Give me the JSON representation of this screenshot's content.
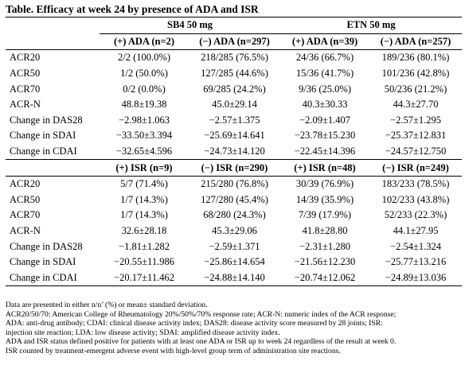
{
  "title": "Table. Efficacy at week 24 by presence of ADA and ISR",
  "groups": [
    "SB4 50 mg",
    "ETN 50 mg"
  ],
  "ada_headers": [
    "(+) ADA (n=2)",
    "(−) ADA (n=297)",
    "(+) ADA (n=39)",
    "(−) ADA (n=257)"
  ],
  "ada_rows": [
    {
      "label": "ACR20",
      "values": [
        "2/2 (100.0%)",
        "218/285 (76.5%)",
        "24/36 (66.7%)",
        "189/236 (80.1%)"
      ]
    },
    {
      "label": "ACR50",
      "values": [
        "1/2 (50.0%)",
        "127/285 (44.6%)",
        "15/36 (41.7%)",
        "101/236 (42.8%)"
      ]
    },
    {
      "label": "ACR70",
      "values": [
        "0/2 (0.0%)",
        "69/285 (24.2%)",
        "9/36 (25.0%)",
        "50/236 (21.2%)"
      ]
    },
    {
      "label": "ACR-N",
      "values": [
        "48.8±19.38",
        "45.0±29.14",
        "40.3±30.33",
        "44.3±27.70"
      ]
    },
    {
      "label": "Change in DAS28",
      "values": [
        "−2.98±1.063",
        "−2.57±1.375",
        "−2.09±1.407",
        "−2.57±1.295"
      ]
    },
    {
      "label": "Change in SDAI",
      "values": [
        "−33.50±3.394",
        "−25.69±14.641",
        "−23.78±15.230",
        "−25.37±12.831"
      ]
    },
    {
      "label": "Change in CDAI",
      "values": [
        "−32.65±4.596",
        "−24.73±14.120",
        "−22.45±14.396",
        "−24.57±12.750"
      ]
    }
  ],
  "isr_headers": [
    "(+) ISR (n=9)",
    "(−) ISR (n=290)",
    "(+) ISR (n=48)",
    "(−) ISR (n=249)"
  ],
  "isr_rows": [
    {
      "label": "ACR20",
      "values": [
        "5/7 (71.4%)",
        "215/280 (76.8%)",
        "30/39 (76.9%)",
        "183/233 (78.5%)"
      ]
    },
    {
      "label": "ACR50",
      "values": [
        "1/7 (14.3%)",
        "127/280 (45.4%)",
        "14/39 (35.9%)",
        "102/233 (43.8%)"
      ]
    },
    {
      "label": "ACR70",
      "values": [
        "1/7 (14.3%)",
        "68/280 (24.3%)",
        "7/39 (17.9%)",
        "52/233 (22.3%)"
      ]
    },
    {
      "label": "ACR-N",
      "values": [
        "32.6±28.18",
        "45.3±29.06",
        "41.8±28.80",
        "44.1±27.95"
      ]
    },
    {
      "label": "Change in DAS28",
      "values": [
        "−1.81±1.282",
        "−2.59±1.371",
        "−2.31±1.280",
        "−2.54±1.324"
      ]
    },
    {
      "label": "Change in SDAI",
      "values": [
        "−20.55±11.986",
        "−25.86±14.654",
        "−21.56±12.230",
        "−25.77±13.216"
      ]
    },
    {
      "label": "Change in CDAI",
      "values": [
        "−20.17±11.462",
        "−24.88±14.140",
        "−20.74±12.062",
        "−24.89±13.036"
      ]
    }
  ],
  "notes": [
    "Data are presented in either n/n’ (%) or mean± standard deviation.",
    "ACR20/50/70: American College of Rheumatology 20%/50%/70% response rate; ACR-N: numeric index of the ACR response;",
    "ADA: anti-drug antibody; CDAI: clinical disease activity index; DAS28: disease activity score measured by 28 joints; ISR:",
    "injection site reaction; LDA: low disease activity; SDAI: amplified disease activity index.",
    "ADA and ISR status defined positive for patients with at least one ADA or ISR up to week 24 regardless of the result at week 0.",
    "ISR counted by treatment-emergent adverse event with high-level group term of administration site reactions."
  ]
}
